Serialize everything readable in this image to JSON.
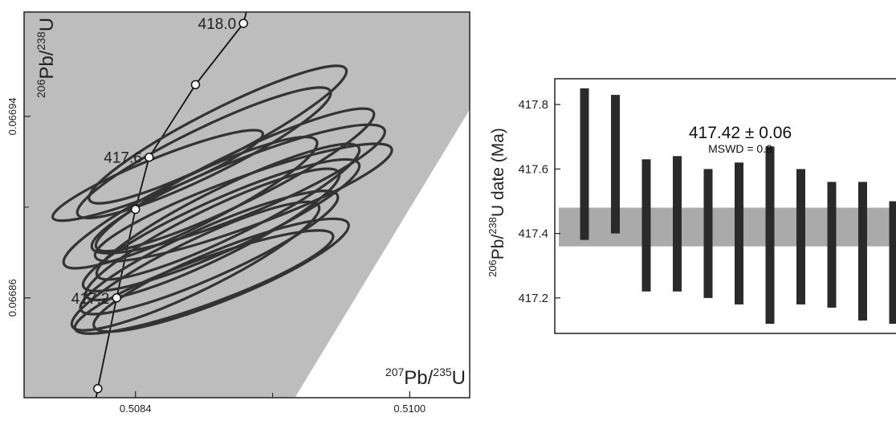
{
  "chart_data": [
    {
      "type": "concordia",
      "xlabel_base": "Pb",
      "xlabel_mass_num": "207",
      "xlabel_mass_den": "235",
      "xlabel_den_base": "U",
      "ylabel_base": "Pb",
      "ylabel_mass_num": "206",
      "ylabel_mass_den": "238",
      "ylabel_den_base": "U",
      "xlim": [
        0.50775,
        0.51035
      ],
      "ylim": [
        0.066816,
        0.066986
      ],
      "xticks": [
        "0.5084",
        "0.5100"
      ],
      "xtick_values": [
        0.5084,
        0.51
      ],
      "yticks": [
        "0.06686",
        "0.06694"
      ],
      "ytick_values": [
        0.06686,
        0.06694
      ],
      "concordia_age_labels": [
        "417.2",
        "417.6",
        "418.0"
      ],
      "concordia_ages": [
        417.0,
        417.2,
        417.4,
        417.6,
        417.8,
        418.0
      ],
      "concordia_points": [
        {
          "age": 417.0,
          "x": 0.50818,
          "y": 0.06682
        },
        {
          "age": 417.2,
          "x": 0.50829,
          "y": 0.06686
        },
        {
          "age": 417.4,
          "x": 0.5084,
          "y": 0.066899
        },
        {
          "age": 417.6,
          "x": 0.50848,
          "y": 0.066922
        },
        {
          "age": 417.8,
          "x": 0.50875,
          "y": 0.066954
        },
        {
          "age": 418.0,
          "x": 0.50903,
          "y": 0.066981
        }
      ],
      "band_color": "#bdbdbd",
      "ellipse_color": "#333333",
      "ellipses": [
        {
          "cx": 0.50888,
          "cy": 0.066932,
          "rx": 0.00084,
          "ry": 1.05e-05,
          "angle": 27
        },
        {
          "cx": 0.5088,
          "cy": 0.066924,
          "rx": 0.00082,
          "ry": 1.05e-05,
          "angle": 26
        },
        {
          "cx": 0.50898,
          "cy": 0.066912,
          "rx": 0.0009,
          "ry": 1.1e-05,
          "angle": 26
        },
        {
          "cx": 0.509,
          "cy": 0.066908,
          "rx": 0.00092,
          "ry": 1.2e-05,
          "angle": 22
        },
        {
          "cx": 0.50872,
          "cy": 0.066902,
          "rx": 0.00082,
          "ry": 1.1e-05,
          "angle": 26
        },
        {
          "cx": 0.50853,
          "cy": 0.066914,
          "rx": 0.00066,
          "ry": 7.5e-06,
          "angle": 22
        },
        {
          "cx": 0.50894,
          "cy": 0.066898,
          "rx": 0.00085,
          "ry": 1.1e-05,
          "angle": 26
        },
        {
          "cx": 0.5089,
          "cy": 0.066892,
          "rx": 0.00088,
          "ry": 1.15e-05,
          "angle": 24
        },
        {
          "cx": 0.50903,
          "cy": 0.066902,
          "rx": 0.00092,
          "ry": 1.1e-05,
          "angle": 20
        },
        {
          "cx": 0.50885,
          "cy": 0.066888,
          "rx": 0.00082,
          "ry": 1.1e-05,
          "angle": 26
        },
        {
          "cx": 0.50883,
          "cy": 0.06688,
          "rx": 0.00082,
          "ry": 1.1e-05,
          "angle": 24
        },
        {
          "cx": 0.50875,
          "cy": 0.066874,
          "rx": 0.0008,
          "ry": 1.1e-05,
          "angle": 26
        },
        {
          "cx": 0.5089,
          "cy": 0.06687,
          "rx": 0.0008,
          "ry": 1.1e-05,
          "angle": 22
        },
        {
          "cx": 0.5088,
          "cy": 0.066867,
          "rx": 0.0008,
          "ry": 1e-05,
          "angle": 20
        }
      ]
    },
    {
      "type": "bar",
      "subtype": "weighted-mean",
      "ylabel_base": "Pb/",
      "ylabel_mass_num": "206",
      "ylabel_mass_den": "238",
      "ylabel_tail": "U date (Ma)",
      "ylim": [
        417.09,
        417.88
      ],
      "yticks": [
        "417.2",
        "417.4",
        "417.6",
        "417.8"
      ],
      "ytick_values": [
        417.2,
        417.4,
        417.6,
        417.8
      ],
      "mean_text": "417.42 ± 0.06",
      "mswd_text": "MSWD = 0.8",
      "mean": 417.42,
      "mean_band": [
        417.36,
        417.48
      ],
      "band_color": "#aaaaaa",
      "bar_color": "#2a2a2a",
      "bars": [
        {
          "low": 417.38,
          "high": 417.85
        },
        {
          "low": 417.4,
          "high": 417.83
        },
        {
          "low": 417.22,
          "high": 417.63
        },
        {
          "low": 417.22,
          "high": 417.64
        },
        {
          "low": 417.2,
          "high": 417.6
        },
        {
          "low": 417.18,
          "high": 417.62
        },
        {
          "low": 417.12,
          "high": 417.67
        },
        {
          "low": 417.18,
          "high": 417.6
        },
        {
          "low": 417.17,
          "high": 417.56
        },
        {
          "low": 417.13,
          "high": 417.56
        },
        {
          "low": 417.12,
          "high": 417.5
        }
      ]
    }
  ]
}
